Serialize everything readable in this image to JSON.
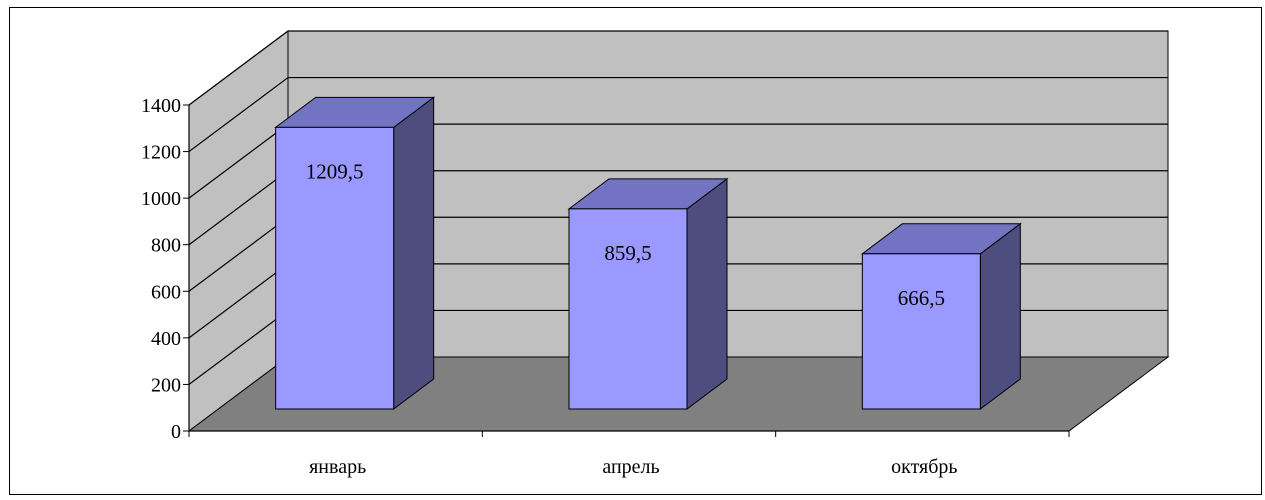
{
  "chart_data": {
    "type": "bar",
    "style": "3d-column",
    "categories": [
      "январь",
      "апрель",
      "октябрь"
    ],
    "values": [
      1209.5,
      859.5,
      666.5
    ],
    "data_labels": [
      "1209,5",
      "859,5",
      "666,5"
    ],
    "ylim": [
      0,
      1400
    ],
    "yticks": [
      0,
      200,
      400,
      600,
      800,
      1000,
      1200,
      1400
    ],
    "ytick_labels": [
      "0",
      "200",
      "400",
      "600",
      "800",
      "1000",
      "1200",
      "1400"
    ],
    "grid": true,
    "legend": "none",
    "colors": {
      "bar_front": "#9999ff",
      "bar_top": "#7373c4",
      "bar_side": "#4d4d80",
      "back_wall": "#c0c0c0",
      "side_wall": "#c0c0c0",
      "floor": "#808080",
      "gridline": "#000000"
    }
  }
}
